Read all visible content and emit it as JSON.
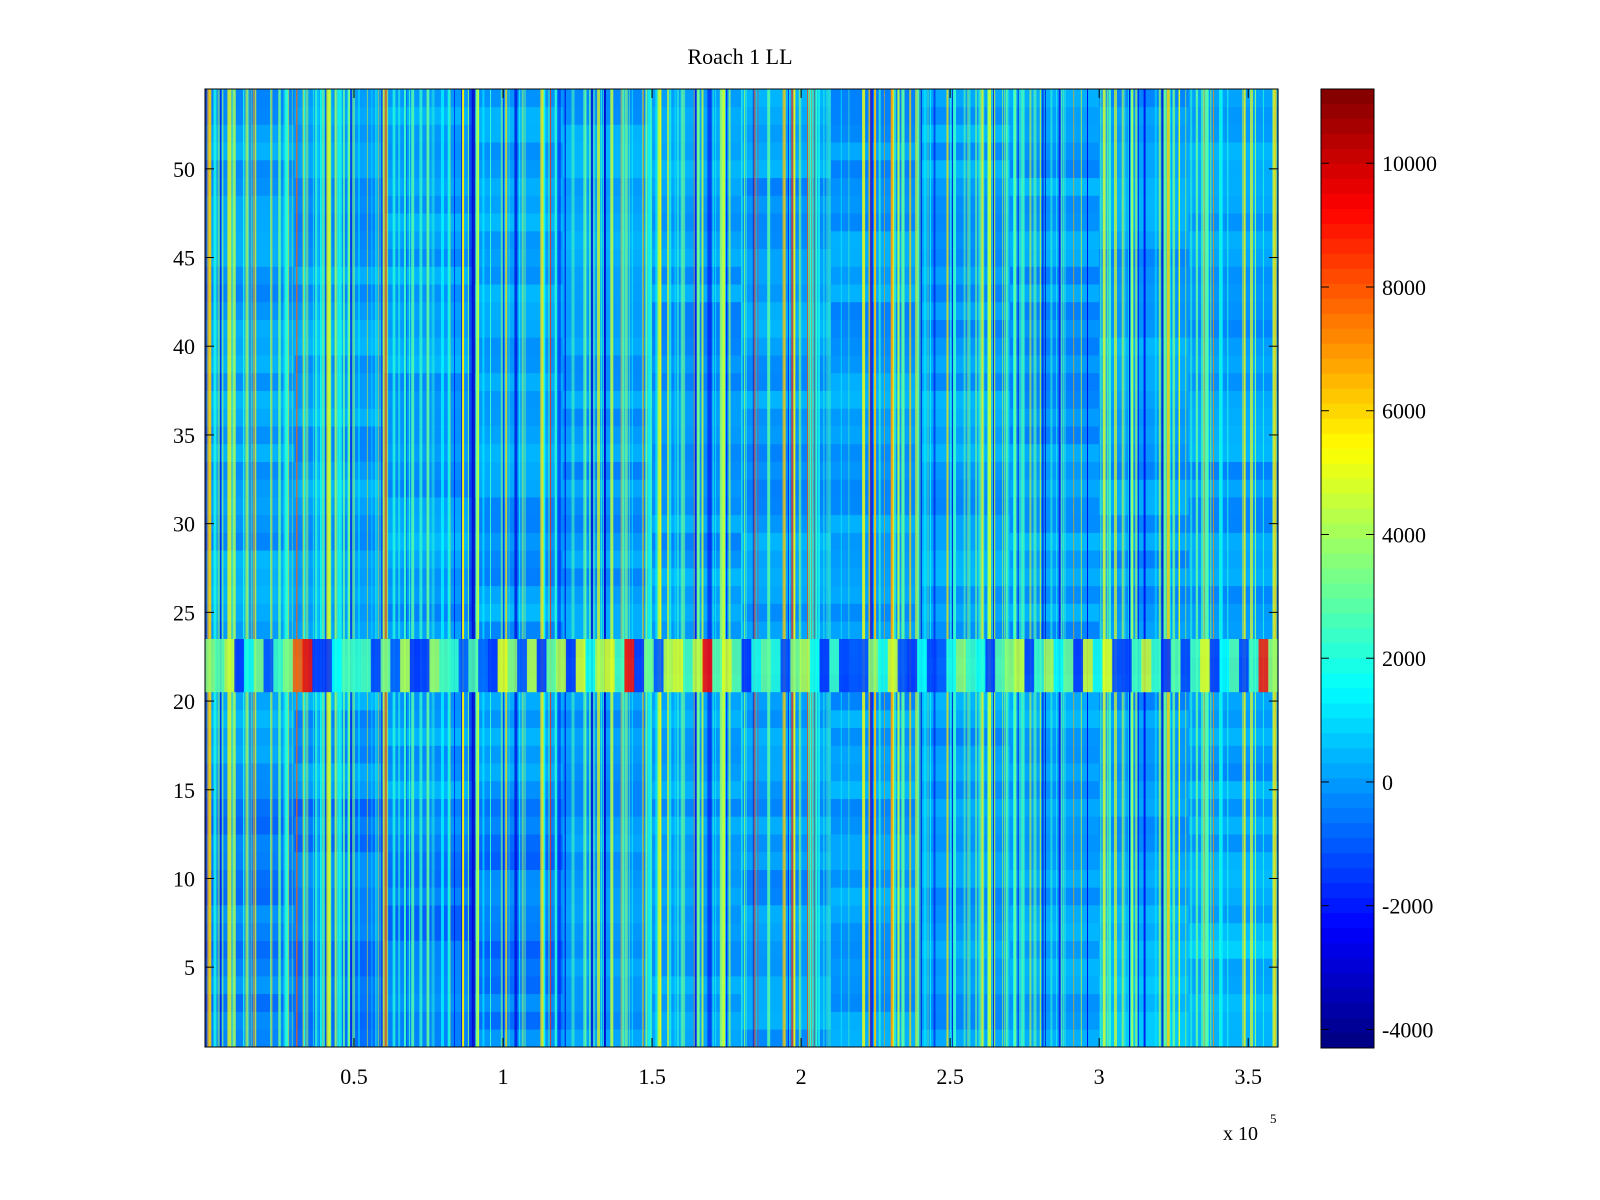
{
  "chart_data": {
    "type": "heatmap",
    "title": "Roach 1 LL",
    "xlabel": "",
    "ylabel": "",
    "xlim": [
      0,
      360000
    ],
    "ylim": [
      0.5,
      54.5
    ],
    "rows": 54,
    "x_ticks": [
      50000,
      100000,
      150000,
      200000,
      250000,
      300000,
      350000
    ],
    "x_tick_labels": [
      "0.5",
      "1",
      "1.5",
      "2",
      "2.5",
      "3",
      "3.5"
    ],
    "x_multiplier_label": "x 10",
    "x_multiplier_exponent": "5",
    "y_ticks": [
      5,
      10,
      15,
      20,
      25,
      30,
      35,
      40,
      45,
      50
    ],
    "y_tick_labels": [
      "5",
      "10",
      "15",
      "20",
      "25",
      "30",
      "35",
      "40",
      "45",
      "50"
    ],
    "colorbar": {
      "colormap": "jet",
      "clim": [
        -4300,
        11200
      ],
      "ticks": [
        -4000,
        -2000,
        0,
        2000,
        4000,
        6000,
        8000,
        10000
      ],
      "tick_labels": [
        "-4000",
        "-2000",
        "0",
        "2000",
        "4000",
        "6000",
        "8000",
        "10000"
      ]
    },
    "grid": false,
    "background_value": 0,
    "features": [
      {
        "description": "dense vertical streaks across all rows, mostly cyan/yellow with occasional red",
        "value_range": [
          -3500,
          9000
        ]
      },
      {
        "description": "horizontal band with alternating high/low values",
        "rows": [
          21,
          23
        ]
      }
    ]
  }
}
